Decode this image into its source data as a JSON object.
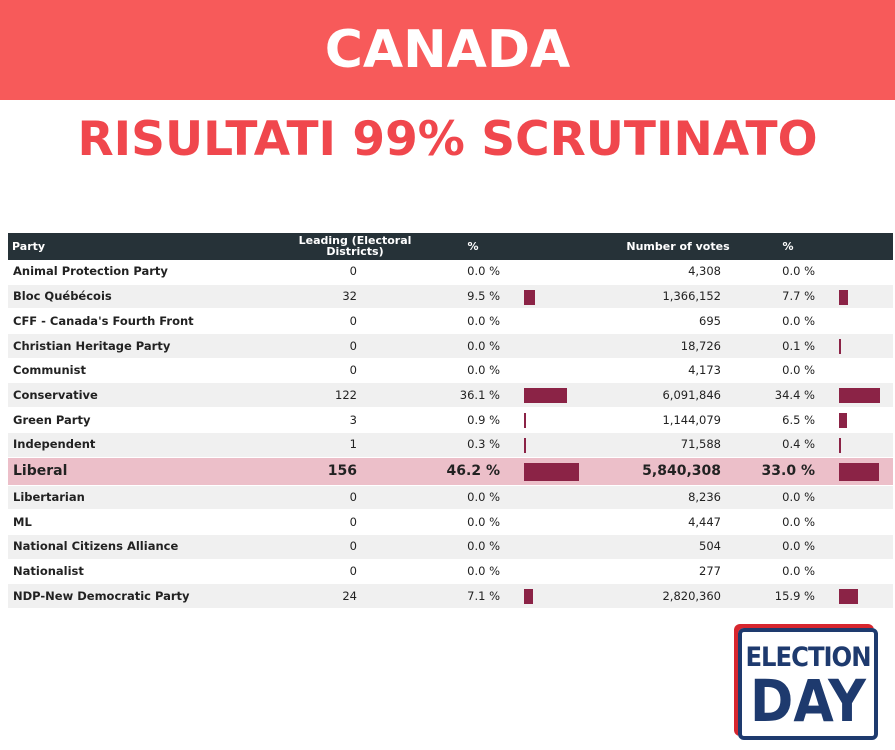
{
  "header": {
    "title": "CANADA",
    "subtitle": "RISULTATI 99% SCRUTINATO"
  },
  "table": {
    "columns": [
      "Party",
      "Leading (Electoral Districts)",
      "%",
      "Number of votes",
      "%"
    ],
    "rows": [
      {
        "party": "Animal Protection Party",
        "leading": "0",
        "seat_share": {
          "value": 0.0,
          "label": "0.0 %"
        },
        "votes": "4,308",
        "vote_share": {
          "value": 0.0,
          "label": "0.0 %"
        }
      },
      {
        "party": "Bloc Québécois",
        "leading": "32",
        "seat_share": {
          "value": 9.5,
          "label": "9.5 %"
        },
        "votes": "1,366,152",
        "vote_share": {
          "value": 7.7,
          "label": "7.7 %"
        }
      },
      {
        "party": "CFF - Canada's Fourth Front",
        "leading": "0",
        "seat_share": {
          "value": 0.0,
          "label": "0.0 %"
        },
        "votes": "695",
        "vote_share": {
          "value": 0.0,
          "label": "0.0 %"
        }
      },
      {
        "party": "Christian Heritage Party",
        "leading": "0",
        "seat_share": {
          "value": 0.0,
          "label": "0.0 %"
        },
        "votes": "18,726",
        "vote_share": {
          "value": 0.1,
          "label": "0.1 %"
        }
      },
      {
        "party": "Communist",
        "leading": "0",
        "seat_share": {
          "value": 0.0,
          "label": "0.0 %"
        },
        "votes": "4,173",
        "vote_share": {
          "value": 0.0,
          "label": "0.0 %"
        }
      },
      {
        "party": "Conservative",
        "leading": "122",
        "seat_share": {
          "value": 36.1,
          "label": "36.1 %"
        },
        "votes": "6,091,846",
        "vote_share": {
          "value": 34.4,
          "label": "34.4 %"
        }
      },
      {
        "party": "Green Party",
        "leading": "3",
        "seat_share": {
          "value": 0.9,
          "label": "0.9 %"
        },
        "votes": "1,144,079",
        "vote_share": {
          "value": 6.5,
          "label": "6.5 %"
        }
      },
      {
        "party": "Independent",
        "leading": "1",
        "seat_share": {
          "value": 0.3,
          "label": "0.3 %"
        },
        "votes": "71,588",
        "vote_share": {
          "value": 0.4,
          "label": "0.4 %"
        }
      },
      {
        "party": "Liberal",
        "leading": "156",
        "seat_share": {
          "value": 46.2,
          "label": "46.2 %"
        },
        "votes": "5,840,308",
        "vote_share": {
          "value": 33.0,
          "label": "33.0 %"
        },
        "highlighted": true
      },
      {
        "party": "Libertarian",
        "leading": "0",
        "seat_share": {
          "value": 0.0,
          "label": "0.0 %"
        },
        "votes": "8,236",
        "vote_share": {
          "value": 0.0,
          "label": "0.0 %"
        }
      },
      {
        "party": "ML",
        "leading": "0",
        "seat_share": {
          "value": 0.0,
          "label": "0.0 %"
        },
        "votes": "4,447",
        "vote_share": {
          "value": 0.0,
          "label": "0.0 %"
        }
      },
      {
        "party": "National Citizens Alliance",
        "leading": "0",
        "seat_share": {
          "value": 0.0,
          "label": "0.0 %"
        },
        "votes": "504",
        "vote_share": {
          "value": 0.0,
          "label": "0.0 %"
        }
      },
      {
        "party": "Nationalist",
        "leading": "0",
        "seat_share": {
          "value": 0.0,
          "label": "0.0 %"
        },
        "votes": "277",
        "vote_share": {
          "value": 0.0,
          "label": "0.0 %"
        }
      },
      {
        "party": "NDP-New Democratic Party",
        "leading": "24",
        "seat_share": {
          "value": 7.1,
          "label": "7.1 %"
        },
        "votes": "2,820,360",
        "vote_share": {
          "value": 15.9,
          "label": "15.9 %"
        }
      }
    ]
  },
  "logo": {
    "line1": "ELECTION",
    "line2": "DAY"
  }
}
